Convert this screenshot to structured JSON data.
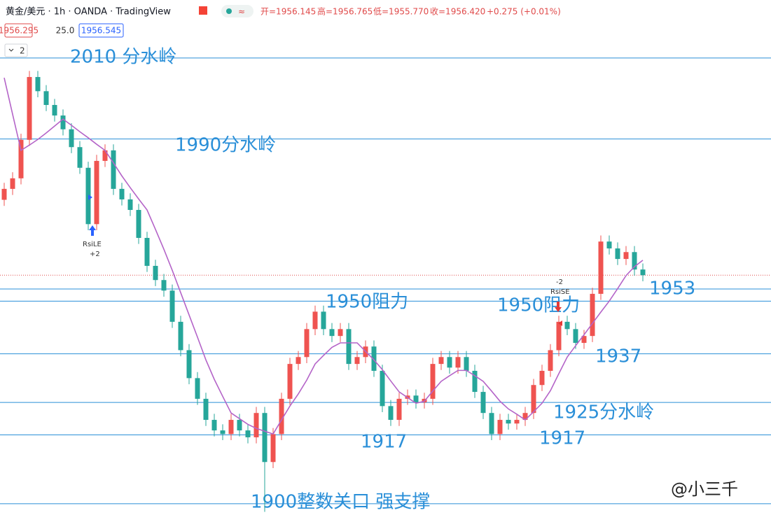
{
  "toolbar": {
    "symbol": "黄金/美元 · 1h · OANDA · TradingView",
    "ohlc": [
      "开=1956.145",
      "高=1956.765",
      "低=1955.770",
      "收=1956.420",
      "+0.275 (+0.01%)"
    ],
    "bid": "1956.295",
    "spread": "25.0",
    "ask": "1956.545",
    "collapse": "2"
  },
  "chart_data": {
    "type": "candlestick",
    "ylim": [
      1895.5,
      2024.3
    ],
    "up_color": "#ef5350",
    "down_color": "#26a69a",
    "ma_color": "#b464c8",
    "level_color": "#2a8fd8",
    "open": [
      1975.0,
      1977.7,
      1980.3,
      1989.8,
      2005.3,
      2001.8,
      1998.4,
      1995.8,
      1992.4,
      1988.0,
      1982.9,
      1969.0,
      1984.6,
      1987.2,
      1977.7,
      1975.1,
      1972.5,
      1965.6,
      1958.7,
      1955.2,
      1952.6,
      1944.9,
      1937.9,
      1931.0,
      1925.9,
      1920.7,
      1918.1,
      1917.2,
      1920.7,
      1918.1,
      1916.4,
      1922.4,
      1910.3,
      1917.2,
      1925.9,
      1934.5,
      1936.2,
      1943.1,
      1947.4,
      1943.1,
      1941.4,
      1943.1,
      1934.5,
      1936.2,
      1938.8,
      1932.8,
      1924.1,
      1920.7,
      1925.9,
      1926.7,
      1925.0,
      1925.9,
      1934.5,
      1936.2,
      1933.6,
      1936.2,
      1932.8,
      1927.6,
      1922.4,
      1917.2,
      1920.7,
      1919.8,
      1920.7,
      1922.4,
      1929.3,
      1932.8,
      1937.9,
      1944.9,
      1943.1,
      1939.7,
      1941.4,
      1951.8,
      1964.7,
      1963.0,
      1960.4,
      1962.1,
      1957.8
    ],
    "high": [
      1979.2,
      1981.8,
      1991.3,
      2006.8,
      2006.8,
      2003.3,
      1999.9,
      1997.3,
      1993.9,
      1989.5,
      1984.4,
      1986.1,
      1988.7,
      1988.7,
      1979.2,
      1976.6,
      1974.0,
      1967.1,
      1960.2,
      1956.7,
      1954.1,
      1946.4,
      1939.4,
      1932.5,
      1927.4,
      1922.2,
      1919.6,
      1922.2,
      1922.2,
      1919.6,
      1923.9,
      1923.9,
      1918.7,
      1927.4,
      1936.0,
      1937.7,
      1944.6,
      1948.9,
      1948.9,
      1944.6,
      1944.6,
      1944.6,
      1937.7,
      1940.3,
      1940.3,
      1934.3,
      1925.6,
      1927.4,
      1928.2,
      1928.2,
      1927.4,
      1936.0,
      1937.7,
      1937.7,
      1937.7,
      1937.7,
      1934.3,
      1929.1,
      1923.9,
      1922.2,
      1922.2,
      1922.2,
      1923.9,
      1930.8,
      1934.3,
      1939.4,
      1946.4,
      1946.4,
      1944.6,
      1942.9,
      1953.3,
      1966.2,
      1966.2,
      1964.5,
      1963.6,
      1963.6,
      1959.3
    ],
    "low": [
      1973.5,
      1976.2,
      1978.8,
      1988.3,
      2000.3,
      1996.9,
      1994.3,
      1990.9,
      1986.5,
      1981.4,
      1967.5,
      1967.5,
      1983.1,
      1976.2,
      1973.6,
      1971.0,
      1964.1,
      1957.2,
      1953.7,
      1951.1,
      1943.4,
      1936.4,
      1929.5,
      1924.4,
      1919.2,
      1916.6,
      1915.7,
      1915.7,
      1916.6,
      1914.9,
      1914.9,
      1898.0,
      1908.8,
      1915.7,
      1924.4,
      1933.0,
      1934.7,
      1941.6,
      1941.6,
      1939.9,
      1939.9,
      1933.0,
      1933.0,
      1934.7,
      1931.3,
      1922.6,
      1919.2,
      1919.2,
      1924.4,
      1923.5,
      1923.5,
      1924.4,
      1933.0,
      1932.1,
      1932.1,
      1931.3,
      1926.1,
      1920.9,
      1915.7,
      1915.7,
      1918.3,
      1918.3,
      1919.2,
      1920.9,
      1927.8,
      1931.3,
      1936.4,
      1941.6,
      1938.2,
      1938.2,
      1939.9,
      1950.3,
      1961.5,
      1958.9,
      1958.9,
      1956.3,
      1954.9
    ],
    "close": [
      1977.7,
      1980.3,
      1989.8,
      2005.3,
      2001.8,
      1998.4,
      1995.8,
      1992.4,
      1988.0,
      1982.9,
      1969.0,
      1984.6,
      1987.2,
      1977.7,
      1975.1,
      1972.5,
      1965.6,
      1958.7,
      1955.2,
      1952.6,
      1944.9,
      1937.9,
      1931.0,
      1925.9,
      1920.7,
      1918.1,
      1917.2,
      1920.7,
      1918.1,
      1916.4,
      1922.4,
      1910.3,
      1917.2,
      1925.9,
      1934.5,
      1936.2,
      1943.1,
      1947.4,
      1943.1,
      1941.4,
      1943.1,
      1934.5,
      1936.2,
      1938.8,
      1932.8,
      1924.1,
      1920.7,
      1925.9,
      1926.7,
      1925.0,
      1925.9,
      1934.5,
      1936.2,
      1933.6,
      1936.2,
      1932.8,
      1927.6,
      1922.4,
      1917.2,
      1920.7,
      1919.8,
      1920.7,
      1922.4,
      1929.3,
      1932.8,
      1937.9,
      1944.9,
      1943.1,
      1939.7,
      1941.4,
      1951.8,
      1964.7,
      1963.0,
      1960.4,
      1962.1,
      1957.8,
      1956.4
    ],
    "ma": [
      2005.1,
      1996.1,
      1987.2,
      1988.5,
      1989.9,
      1991.5,
      1993.2,
      1994.9,
      1993.4,
      1991.8,
      1990.3,
      1988.7,
      1987.2,
      1984.1,
      1980.9,
      1978.0,
      1975.2,
      1972.5,
      1967.7,
      1962.8,
      1957.6,
      1952.1,
      1946.6,
      1941.1,
      1935.5,
      1930.7,
      1926.5,
      1922.4,
      1921.0,
      1919.6,
      1918.6,
      1917.9,
      1917.2,
      1920.7,
      1924.1,
      1927.1,
      1930.5,
      1934.5,
      1936.6,
      1938.6,
      1939.7,
      1939.7,
      1939.7,
      1937.6,
      1935.5,
      1933.1,
      1930.3,
      1927.6,
      1926.2,
      1924.8,
      1925.3,
      1927.8,
      1930.2,
      1931.6,
      1932.9,
      1932.9,
      1931.6,
      1930.2,
      1927.8,
      1925.3,
      1923.4,
      1922.1,
      1920.7,
      1922.7,
      1924.8,
      1927.9,
      1932.1,
      1936.2,
      1939.0,
      1941.7,
      1944.5,
      1947.3,
      1950.0,
      1953.1,
      1956.3,
      1958.5,
      1960.1
    ],
    "levels": [
      {
        "value": 2010,
        "labels": [
          "2010 分水岭"
        ]
      },
      {
        "value": 1990,
        "labels": [
          "1990分水岭"
        ]
      },
      {
        "value": 1953,
        "labels": [
          "1953"
        ]
      },
      {
        "value": 1950,
        "labels": [
          "1950阻力",
          "1950阻力"
        ]
      },
      {
        "value": 1937,
        "labels": [
          "1937"
        ]
      },
      {
        "value": 1925,
        "labels": [
          "1925分水岭"
        ]
      },
      {
        "value": 1917,
        "labels": [
          "1917",
          "1917"
        ]
      },
      {
        "value": 1900,
        "labels": [
          "1900整数关口 强支撑"
        ]
      }
    ],
    "signals": [
      {
        "name": "RsiLE",
        "qty": "+2"
      },
      {
        "name": "RsiSE",
        "qty": "-2"
      }
    ],
    "watermark": "@小三千"
  }
}
